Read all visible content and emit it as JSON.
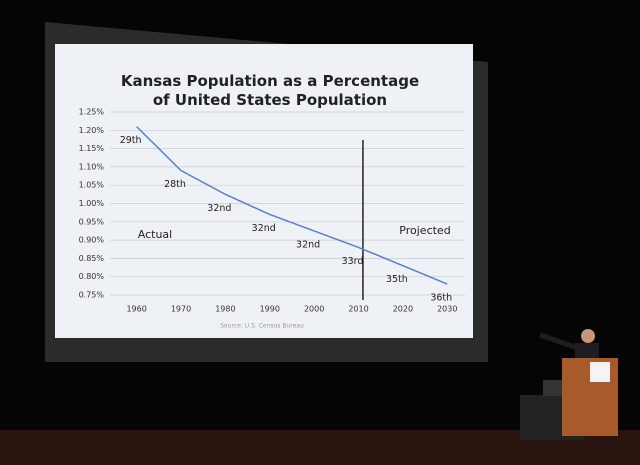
{
  "chart_data": {
    "type": "line",
    "title": "Kansas Population as a Percentage of United States Population",
    "x": [
      1960,
      1970,
      1980,
      1990,
      2000,
      2010,
      2020,
      2030
    ],
    "values": [
      1.21,
      1.09,
      1.025,
      0.97,
      0.925,
      0.88,
      0.83,
      0.78
    ],
    "point_labels": [
      "29th",
      "28th",
      "32nd",
      "32nd",
      "32nd",
      "33rd",
      "35th",
      "36th"
    ],
    "color": "#5b7fc4",
    "xlim": [
      1954,
      2034
    ],
    "xticks": [
      1960,
      1970,
      1980,
      1990,
      2000,
      2010,
      2020,
      2030
    ],
    "ylim": [
      0.75,
      1.25
    ],
    "yticks": [
      {
        "value": 0.75,
        "label": "0.75%"
      },
      {
        "value": 0.8,
        "label": "0.80%"
      },
      {
        "value": 0.85,
        "label": "0.85%"
      },
      {
        "value": 0.9,
        "label": "0.90%"
      },
      {
        "value": 0.95,
        "label": "0.95%"
      },
      {
        "value": 1.0,
        "label": "1.00%"
      },
      {
        "value": 1.05,
        "label": "1.05%"
      },
      {
        "value": 1.1,
        "label": "1.10%"
      },
      {
        "value": 1.15,
        "label": "1.15%"
      },
      {
        "value": 1.2,
        "label": "1.20%"
      },
      {
        "value": 1.25,
        "label": "1.25%"
      }
    ],
    "grid": true,
    "divider_x": 2011,
    "annotations": [
      "Actual",
      "Projected"
    ],
    "source": "Source: U.S. Census Bureau"
  }
}
